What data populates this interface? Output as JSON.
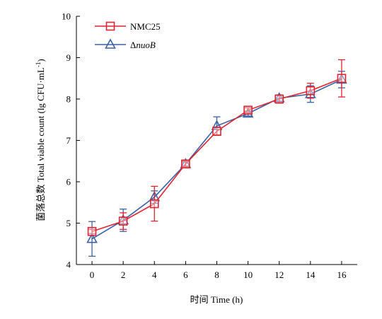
{
  "chart_data": {
    "type": "line",
    "title": "",
    "xlabel": "时间 Time (h)",
    "ylabel_main": "菌落总数 Total viable count (lg CFU·mL",
    "ylabel_sup": "-1",
    "ylabel_close": ")",
    "x": [
      0,
      2,
      4,
      6,
      8,
      10,
      12,
      14,
      16
    ],
    "xlim": [
      -1,
      17
    ],
    "ylim": [
      4,
      10
    ],
    "x_ticks": [
      "0",
      "2",
      "4",
      "6",
      "8",
      "10",
      "12",
      "14",
      "16"
    ],
    "y_ticks": [
      "4",
      "5",
      "6",
      "7",
      "8",
      "9",
      "10"
    ],
    "grid": false,
    "legend_position": "top-left",
    "series": [
      {
        "name": "NMC25",
        "color": "#e0242f",
        "marker": "square",
        "values": [
          4.8,
          5.05,
          5.47,
          6.43,
          7.22,
          7.73,
          8.0,
          8.2,
          8.5
        ],
        "errors": [
          0.05,
          0.2,
          0.42,
          0.07,
          0.1,
          0.06,
          0.1,
          0.18,
          0.45
        ]
      },
      {
        "name": "ΔnuoB",
        "name_prefix": "Δ",
        "name_italic": "nuoB",
        "color": "#3a62a8",
        "marker": "triangle",
        "values": [
          4.62,
          5.07,
          5.63,
          6.43,
          7.35,
          7.65,
          8.02,
          8.12,
          8.47
        ],
        "errors": [
          0.42,
          0.27,
          0.15,
          0.05,
          0.22,
          0.06,
          0.07,
          0.2,
          0.2
        ]
      }
    ]
  }
}
